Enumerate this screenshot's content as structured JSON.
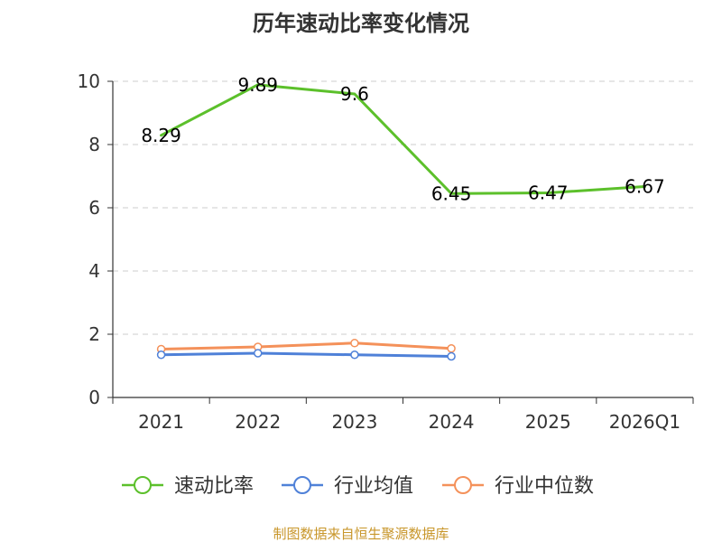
{
  "chart_data": {
    "type": "line",
    "title": "历年速动比率变化情况",
    "categories": [
      "2021",
      "2022",
      "2023",
      "2024",
      "2025",
      "2026Q1"
    ],
    "ylim": [
      0,
      10
    ],
    "yticks": [
      0,
      2,
      4,
      6,
      8,
      10
    ],
    "grid": true,
    "legend_position": "bottom",
    "series": [
      {
        "name": "速动比率",
        "color": "#5cc02b",
        "values": [
          8.29,
          9.89,
          9.6,
          6.45,
          6.47,
          6.67
        ],
        "labels": [
          "8.29",
          "9.89",
          "9.6",
          "6.45",
          "6.47",
          "6.67"
        ]
      },
      {
        "name": "行业均值",
        "color": "#4f81d8",
        "values": [
          1.35,
          1.4,
          1.35,
          1.3,
          null,
          null
        ]
      },
      {
        "name": "行业中位数",
        "color": "#f4915a",
        "values": [
          1.53,
          1.6,
          1.72,
          1.55,
          null,
          null
        ]
      }
    ]
  },
  "source_note": "制图数据来自恒生聚源数据库"
}
